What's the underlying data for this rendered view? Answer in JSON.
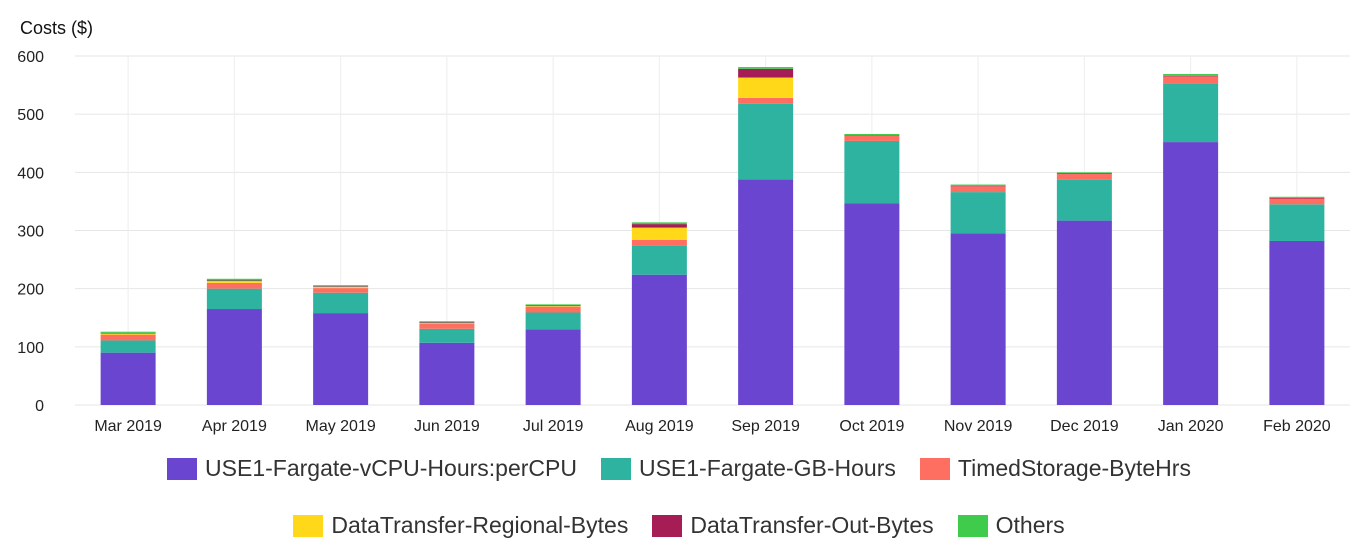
{
  "chart_data": {
    "type": "bar",
    "stacked": true,
    "ylabel": "Costs ($)",
    "xlabel": "",
    "ylim": [
      0,
      600
    ],
    "yticks": [
      0,
      100,
      200,
      300,
      400,
      500,
      600
    ],
    "grid": true,
    "legend_position": "bottom",
    "categories": [
      "Mar 2019",
      "Apr 2019",
      "May 2019",
      "Jun 2019",
      "Jul 2019",
      "Aug 2019",
      "Sep 2019",
      "Oct 2019",
      "Nov 2019",
      "Dec 2019",
      "Jan 2020",
      "Feb 2020"
    ],
    "series": [
      {
        "name": "USE1-Fargate-vCPU-Hours:perCPU",
        "color": "#6a46d0",
        "values": [
          90,
          165,
          158,
          107,
          130,
          224,
          388,
          347,
          295,
          317,
          452,
          282
        ]
      },
      {
        "name": "USE1-Fargate-GB-Hours",
        "color": "#2db3a0",
        "values": [
          21,
          35,
          35,
          24,
          29,
          50,
          130,
          107,
          71,
          70,
          101,
          63
        ]
      },
      {
        "name": "TimedStorage-ByteHrs",
        "color": "#ff6f61",
        "values": [
          10,
          10,
          8,
          9,
          10,
          10,
          10,
          9,
          10,
          10,
          12,
          10
        ]
      },
      {
        "name": "DataTransfer-Regional-Bytes",
        "color": "#ffd919",
        "values": [
          2,
          3,
          2,
          1,
          1,
          21,
          35,
          0,
          0,
          0,
          0,
          0
        ]
      },
      {
        "name": "DataTransfer-Out-Bytes",
        "color": "#a61c55",
        "values": [
          1,
          1,
          1,
          1,
          1,
          6,
          15,
          1,
          1,
          1,
          1,
          1
        ]
      },
      {
        "name": "Others",
        "color": "#3fcc4c",
        "values": [
          2,
          3,
          2,
          2,
          2,
          3,
          3,
          2,
          2,
          2,
          3,
          2
        ]
      }
    ]
  }
}
